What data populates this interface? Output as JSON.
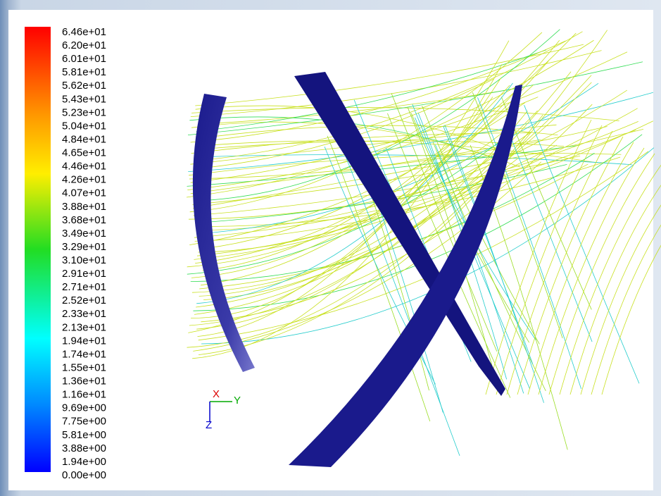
{
  "colorbar": {
    "labels": [
      "6.46e+01",
      "6.20e+01",
      "6.01e+01",
      "5.81e+01",
      "5.62e+01",
      "5.43e+01",
      "5.23e+01",
      "5.04e+01",
      "4.84e+01",
      "4.65e+01",
      "4.46e+01",
      "4.26e+01",
      "4.07e+01",
      "3.88e+01",
      "3.68e+01",
      "3.49e+01",
      "3.29e+01",
      "3.10e+01",
      "2.91e+01",
      "2.71e+01",
      "2.52e+01",
      "2.33e+01",
      "2.13e+01",
      "1.94e+01",
      "1.74e+01",
      "1.55e+01",
      "1.36e+01",
      "1.16e+01",
      "9.69e+00",
      "7.75e+00",
      "5.81e+00",
      "3.88e+00",
      "1.94e+00",
      "0.00e+00"
    ]
  },
  "triad": {
    "x": "X",
    "y": "Y",
    "z": "Z"
  }
}
